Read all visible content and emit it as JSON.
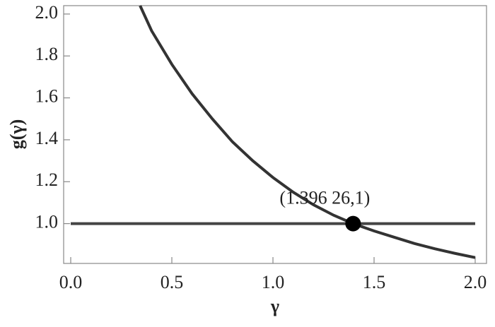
{
  "chart_data": {
    "type": "line",
    "xlabel": "γ",
    "ylabel": "g(γ)",
    "xlim": [
      -0.035,
      2.056
    ],
    "ylim": [
      0.81,
      2.04
    ],
    "xticks": [
      {
        "value": 0,
        "label": "0.0"
      },
      0.5,
      {
        "value": 1,
        "label": "1.0"
      },
      1.5,
      {
        "value": 2,
        "label": "2.0"
      }
    ],
    "yticks": [
      {
        "value": 1,
        "label": "1.0"
      },
      1.2,
      1.4,
      1.6,
      1.8,
      {
        "value": 2,
        "label": "2.0"
      }
    ],
    "series": [
      {
        "color": "#333333",
        "x": [
          0.343,
          0.4,
          0.5,
          0.6,
          0.7,
          0.8,
          0.9,
          1.0,
          1.1,
          1.2,
          1.3,
          1.39626,
          1.5,
          1.6,
          1.7,
          1.8,
          1.9,
          2.0
        ],
        "values": [
          2.04,
          1.92,
          1.76,
          1.62,
          1.5,
          1.39,
          1.3,
          1.22,
          1.15,
          1.09,
          1.04,
          1.0,
          0.965,
          0.935,
          0.905,
          0.88,
          0.858,
          0.838
        ]
      },
      {
        "color": "#444444",
        "x": [
          0,
          2
        ],
        "values": [
          1,
          1
        ]
      }
    ],
    "point": {
      "x": 1.39626,
      "y": 1,
      "label": "(1.396 26,1)",
      "color": "#000000"
    }
  }
}
